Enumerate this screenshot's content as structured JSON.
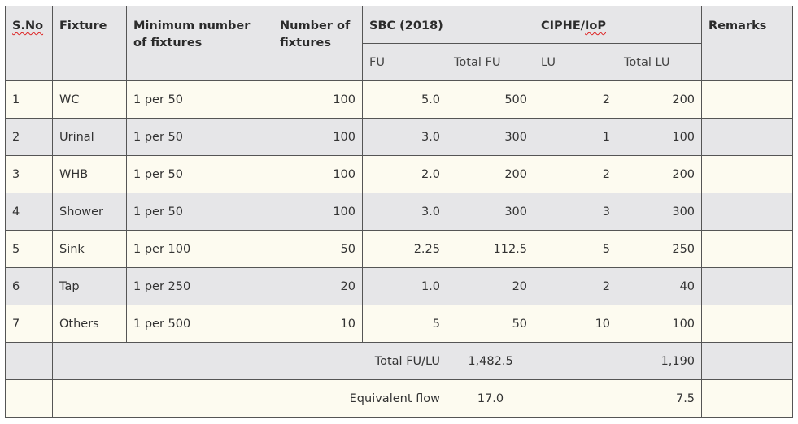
{
  "headers": {
    "sno": "S.No",
    "fixture": "Fixture",
    "minimum": "Minimum number of fixtures",
    "number": "Number of fixtures",
    "sbc": "SBC (2018)",
    "ciphe_prefix": "CIPHE/",
    "ciphe_suffix": "IoP",
    "remarks": "Remarks",
    "fu": "FU",
    "total_fu": "Total FU",
    "lu": "LU",
    "total_lu": "Total LU"
  },
  "rows": [
    {
      "sno": "1",
      "fixture": "WC",
      "minimum": "1 per 50",
      "number": "100",
      "fu": "5.0",
      "total_fu": "500",
      "lu": "2",
      "total_lu": "200",
      "remarks": ""
    },
    {
      "sno": "2",
      "fixture": "Urinal",
      "minimum": "1 per 50",
      "number": "100",
      "fu": "3.0",
      "total_fu": "300",
      "lu": "1",
      "total_lu": "100",
      "remarks": ""
    },
    {
      "sno": "3",
      "fixture": "WHB",
      "minimum": "1 per 50",
      "number": "100",
      "fu": "2.0",
      "total_fu": "200",
      "lu": "2",
      "total_lu": "200",
      "remarks": ""
    },
    {
      "sno": "4",
      "fixture": "Shower",
      "minimum": "1 per 50",
      "number": "100",
      "fu": "3.0",
      "total_fu": "300",
      "lu": "3",
      "total_lu": "300",
      "remarks": ""
    },
    {
      "sno": "5",
      "fixture": "Sink",
      "minimum": "1 per 100",
      "number": "50",
      "fu": "2.25",
      "total_fu": "112.5",
      "lu": "5",
      "total_lu": "250",
      "remarks": ""
    },
    {
      "sno": "6",
      "fixture": "Tap",
      "minimum": "1 per 250",
      "number": "20",
      "fu": "1.0",
      "total_fu": "20",
      "lu": "2",
      "total_lu": "40",
      "remarks": ""
    },
    {
      "sno": "7",
      "fixture": "Others",
      "minimum": "1 per 500",
      "number": "10",
      "fu": "5",
      "total_fu": "50",
      "lu": "10",
      "total_lu": "100",
      "remarks": ""
    }
  ],
  "totals": {
    "label": "Total FU/LU",
    "total_fu": "1,482.5",
    "total_lu": "1,190"
  },
  "equivalent": {
    "label": "Equivalent flow",
    "fu": "17.0",
    "lu": "7.5"
  }
}
